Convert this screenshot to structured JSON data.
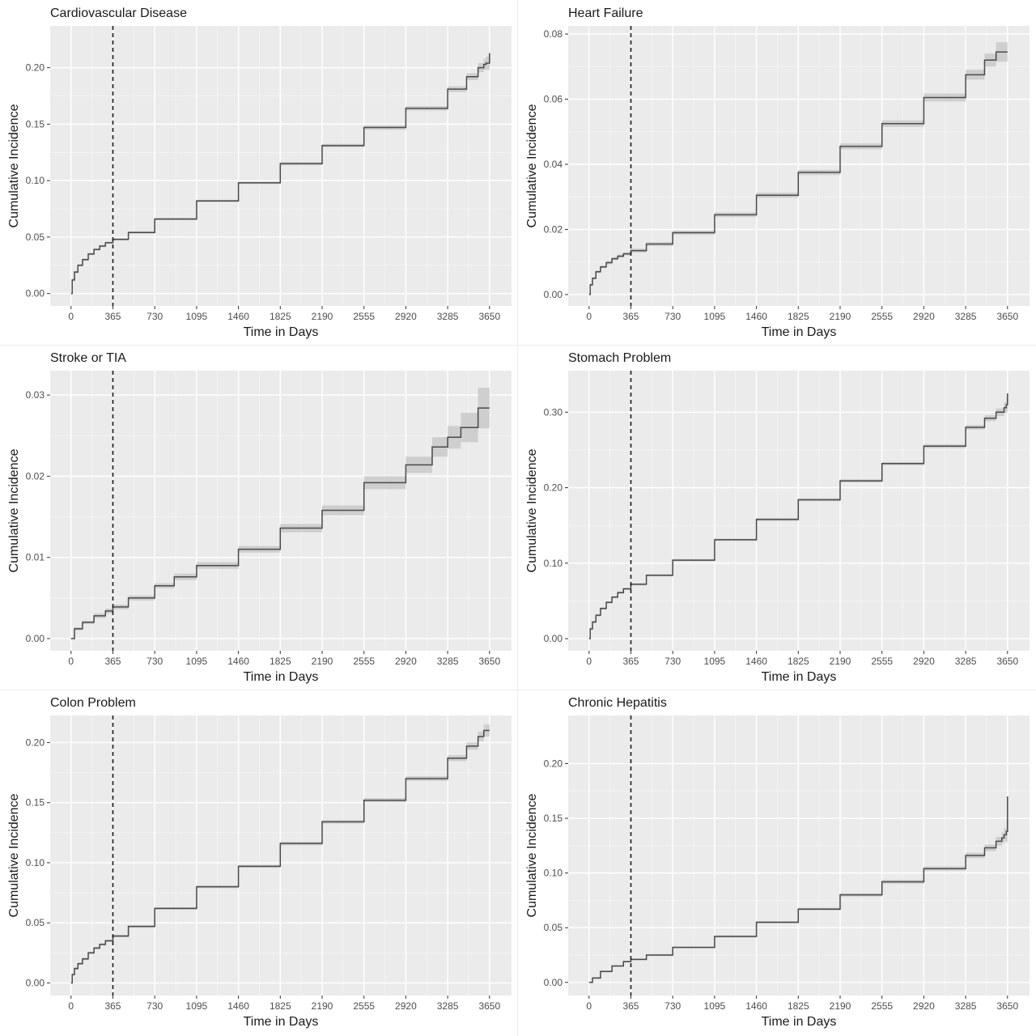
{
  "chart_data": [
    {
      "type": "line",
      "title": "Cardiovascular Disease",
      "xlabel": "Time in Days",
      "ylabel": "Cumulative Incidence",
      "x_ticks": [
        0,
        365,
        730,
        1095,
        1460,
        1825,
        2190,
        2555,
        2920,
        3285,
        3650
      ],
      "y_ticks": [
        0.0,
        0.05,
        0.1,
        0.15,
        0.2
      ],
      "y_tick_labels": [
        "0.00",
        "0.05",
        "0.10",
        "0.15",
        "0.20"
      ],
      "xlim": [
        -182,
        3842
      ],
      "ylim": [
        -0.011,
        0.237
      ],
      "vline": 365,
      "grid": true,
      "series": [
        {
          "x": [
            0,
            10,
            30,
            60,
            100,
            150,
            200,
            250,
            300,
            365,
            500,
            730,
            1095,
            1460,
            1825,
            2190,
            2555,
            2920,
            3285,
            3450,
            3550,
            3600,
            3620,
            3650
          ],
          "y": [
            0.0,
            0.012,
            0.019,
            0.025,
            0.03,
            0.035,
            0.039,
            0.042,
            0.045,
            0.048,
            0.054,
            0.066,
            0.082,
            0.098,
            0.115,
            0.131,
            0.147,
            0.164,
            0.181,
            0.192,
            0.2,
            0.203,
            0.204,
            0.213
          ],
          "ci": [
            0.0,
            0.001,
            0.001,
            0.001,
            0.001,
            0.001,
            0.001,
            0.001,
            0.001,
            0.001,
            0.001,
            0.001,
            0.001,
            0.001,
            0.0015,
            0.0015,
            0.002,
            0.002,
            0.0025,
            0.003,
            0.004,
            0.005,
            0.006,
            0.012
          ]
        }
      ]
    },
    {
      "type": "line",
      "title": "Heart Failure",
      "xlabel": "Time in Days",
      "ylabel": "Cumulative Incidence",
      "x_ticks": [
        0,
        365,
        730,
        1095,
        1460,
        1825,
        2190,
        2555,
        2920,
        3285,
        3650
      ],
      "y_ticks": [
        0.0,
        0.02,
        0.04,
        0.06,
        0.08
      ],
      "y_tick_labels": [
        "0.00",
        "0.02",
        "0.04",
        "0.06",
        "0.08"
      ],
      "xlim": [
        -182,
        3842
      ],
      "ylim": [
        -0.0035,
        0.0825
      ],
      "vline": 365,
      "grid": true,
      "series": [
        {
          "x": [
            0,
            10,
            30,
            60,
            100,
            150,
            200,
            250,
            300,
            365,
            500,
            730,
            1095,
            1460,
            1825,
            2190,
            2555,
            2920,
            3285,
            3450,
            3550,
            3650
          ],
          "y": [
            0.0,
            0.003,
            0.005,
            0.007,
            0.0085,
            0.0098,
            0.011,
            0.0118,
            0.0125,
            0.0135,
            0.0155,
            0.019,
            0.0245,
            0.0305,
            0.0375,
            0.0455,
            0.0525,
            0.0605,
            0.0675,
            0.072,
            0.0745,
            0.0745
          ],
          "ci": [
            0.0,
            0.0004,
            0.0004,
            0.0004,
            0.0004,
            0.0005,
            0.0005,
            0.0005,
            0.0005,
            0.0006,
            0.0006,
            0.0006,
            0.0007,
            0.0008,
            0.0008,
            0.0009,
            0.001,
            0.0012,
            0.0015,
            0.002,
            0.003,
            0.0035
          ]
        }
      ]
    },
    {
      "type": "line",
      "title": "Stroke or TIA",
      "xlabel": "Time in Days",
      "ylabel": "Cumulative Incidence",
      "x_ticks": [
        0,
        365,
        730,
        1095,
        1460,
        1825,
        2190,
        2555,
        2920,
        3285,
        3650
      ],
      "y_ticks": [
        0.0,
        0.01,
        0.02,
        0.03
      ],
      "y_tick_labels": [
        "0.00",
        "0.01",
        "0.02",
        "0.03"
      ],
      "xlim": [
        -182,
        3842
      ],
      "ylim": [
        -0.0015,
        0.033
      ],
      "vline": 365,
      "grid": true,
      "series": [
        {
          "x": [
            0,
            30,
            100,
            200,
            300,
            365,
            500,
            730,
            900,
            1095,
            1460,
            1825,
            2190,
            2555,
            2920,
            3150,
            3285,
            3400,
            3550,
            3650
          ],
          "y": [
            0.0,
            0.0012,
            0.002,
            0.0028,
            0.0034,
            0.0039,
            0.005,
            0.0065,
            0.0076,
            0.009,
            0.011,
            0.0136,
            0.0158,
            0.0192,
            0.0214,
            0.0236,
            0.0248,
            0.026,
            0.0284,
            0.0284
          ],
          "ci": [
            0.0,
            0.0002,
            0.0002,
            0.0003,
            0.0003,
            0.0003,
            0.0003,
            0.0003,
            0.0004,
            0.0004,
            0.0004,
            0.0005,
            0.0006,
            0.0008,
            0.001,
            0.0012,
            0.0014,
            0.0018,
            0.0025,
            0.0027
          ]
        }
      ]
    },
    {
      "type": "line",
      "title": "Stomach Problem",
      "xlabel": "Time in Days",
      "ylabel": "Cumulative Incidence",
      "x_ticks": [
        0,
        365,
        730,
        1095,
        1460,
        1825,
        2190,
        2555,
        2920,
        3285,
        3650
      ],
      "y_ticks": [
        0.0,
        0.1,
        0.2,
        0.3
      ],
      "y_tick_labels": [
        "0.00",
        "0.10",
        "0.20",
        "0.30"
      ],
      "xlim": [
        -182,
        3842
      ],
      "ylim": [
        -0.016,
        0.355
      ],
      "vline": 365,
      "grid": true,
      "series": [
        {
          "x": [
            0,
            10,
            30,
            60,
            100,
            150,
            200,
            250,
            300,
            365,
            500,
            730,
            1095,
            1460,
            1825,
            2190,
            2555,
            2920,
            3285,
            3450,
            3550,
            3620,
            3640,
            3650
          ],
          "y": [
            0.0,
            0.013,
            0.022,
            0.031,
            0.04,
            0.048,
            0.055,
            0.061,
            0.066,
            0.072,
            0.084,
            0.104,
            0.131,
            0.158,
            0.184,
            0.209,
            0.232,
            0.255,
            0.28,
            0.292,
            0.3,
            0.306,
            0.31,
            0.325
          ],
          "ci": [
            0.0,
            0.0015,
            0.0015,
            0.0015,
            0.0015,
            0.0015,
            0.0015,
            0.0015,
            0.0015,
            0.0015,
            0.0015,
            0.0015,
            0.0015,
            0.002,
            0.002,
            0.002,
            0.002,
            0.0025,
            0.003,
            0.004,
            0.005,
            0.007,
            0.01,
            0.03
          ]
        }
      ]
    },
    {
      "type": "line",
      "title": "Colon Problem",
      "xlabel": "Time in Days",
      "ylabel": "Cumulative Incidence",
      "x_ticks": [
        0,
        365,
        730,
        1095,
        1460,
        1825,
        2190,
        2555,
        2920,
        3285,
        3650
      ],
      "y_ticks": [
        0.0,
        0.05,
        0.1,
        0.15,
        0.2
      ],
      "y_tick_labels": [
        "0.00",
        "0.05",
        "0.10",
        "0.15",
        "0.20"
      ],
      "xlim": [
        -182,
        3842
      ],
      "ylim": [
        -0.0105,
        0.2225
      ],
      "vline": 365,
      "grid": true,
      "series": [
        {
          "x": [
            0,
            10,
            30,
            60,
            100,
            150,
            200,
            250,
            300,
            365,
            500,
            730,
            1095,
            1460,
            1825,
            2190,
            2555,
            2920,
            3285,
            3450,
            3550,
            3600,
            3650
          ],
          "y": [
            0.0,
            0.007,
            0.012,
            0.016,
            0.02,
            0.025,
            0.029,
            0.032,
            0.035,
            0.039,
            0.047,
            0.062,
            0.08,
            0.097,
            0.116,
            0.134,
            0.152,
            0.17,
            0.187,
            0.197,
            0.205,
            0.21,
            0.21
          ],
          "ci": [
            0.0,
            0.001,
            0.001,
            0.001,
            0.001,
            0.001,
            0.001,
            0.001,
            0.001,
            0.001,
            0.001,
            0.001,
            0.0012,
            0.0012,
            0.0015,
            0.0015,
            0.0018,
            0.002,
            0.0025,
            0.003,
            0.004,
            0.005,
            0.006
          ]
        }
      ]
    },
    {
      "type": "line",
      "title": "Chronic Hepatitis",
      "xlabel": "Time in Days",
      "ylabel": "Cumulative Incidence",
      "x_ticks": [
        0,
        365,
        730,
        1095,
        1460,
        1825,
        2190,
        2555,
        2920,
        3285,
        3650
      ],
      "y_ticks": [
        0.0,
        0.05,
        0.1,
        0.15,
        0.2
      ],
      "y_tick_labels": [
        "0.00",
        "0.05",
        "0.10",
        "0.15",
        "0.20"
      ],
      "xlim": [
        -182,
        3842
      ],
      "ylim": [
        -0.012,
        0.244
      ],
      "vline": 365,
      "grid": true,
      "series": [
        {
          "x": [
            0,
            30,
            100,
            200,
            300,
            365,
            500,
            730,
            1095,
            1460,
            1825,
            2190,
            2555,
            2920,
            3285,
            3450,
            3550,
            3600,
            3620,
            3640,
            3650
          ],
          "y": [
            0.0,
            0.004,
            0.01,
            0.015,
            0.019,
            0.021,
            0.025,
            0.032,
            0.042,
            0.055,
            0.067,
            0.08,
            0.092,
            0.104,
            0.116,
            0.123,
            0.129,
            0.132,
            0.135,
            0.138,
            0.17
          ],
          "ci": [
            0.0,
            0.0008,
            0.0008,
            0.0008,
            0.0008,
            0.0008,
            0.0008,
            0.0008,
            0.001,
            0.001,
            0.0012,
            0.0015,
            0.0018,
            0.002,
            0.0025,
            0.003,
            0.004,
            0.005,
            0.006,
            0.01,
            0.065
          ]
        }
      ]
    }
  ]
}
